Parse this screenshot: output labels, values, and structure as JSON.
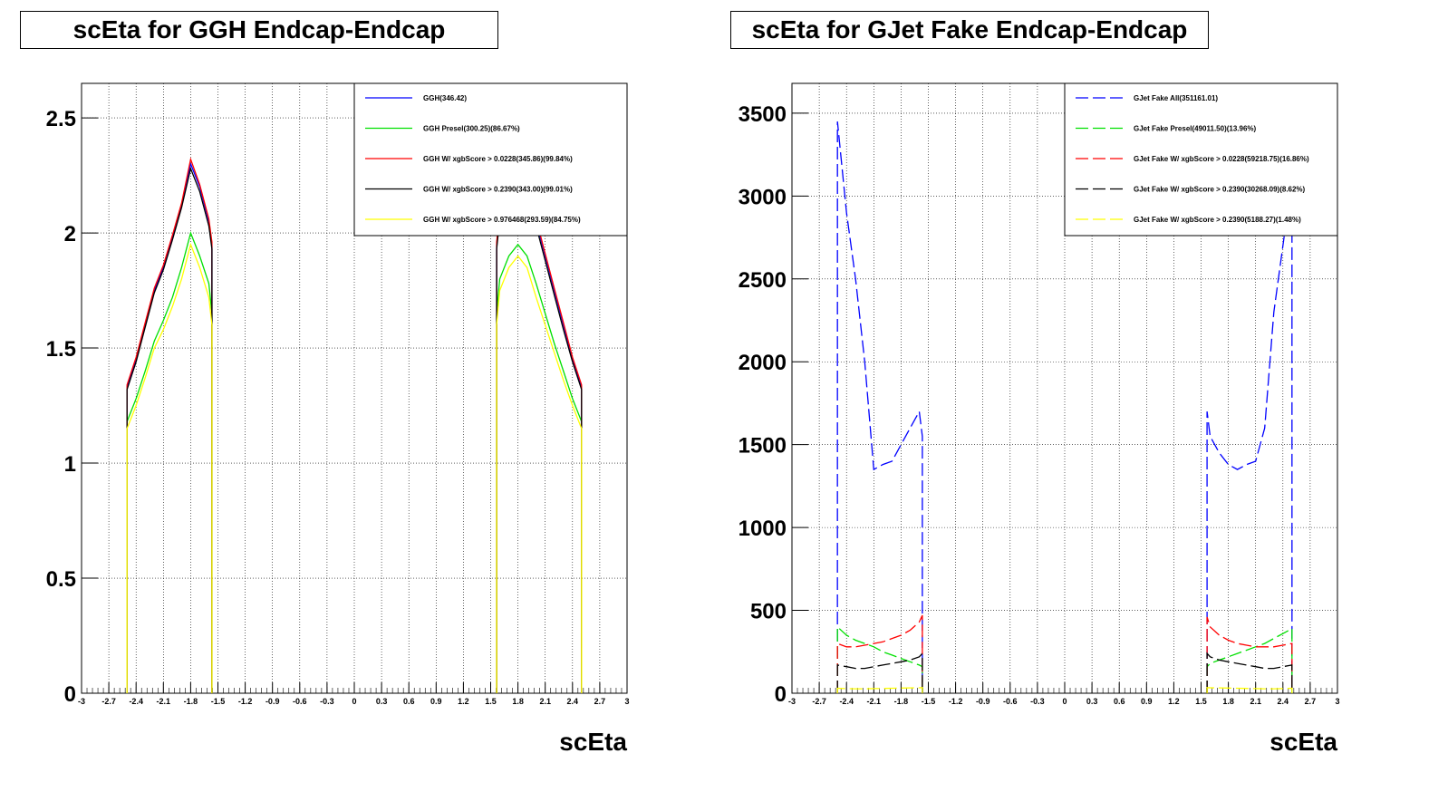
{
  "chart_data": [
    {
      "type": "line",
      "title": "scEta for GGH Endcap-Endcap",
      "xlabel": "scEta",
      "ylabel": "",
      "xlim": [
        -3,
        3
      ],
      "ylim": [
        0,
        2.65
      ],
      "yticks": [
        "0",
        "0.5",
        "1",
        "1.5",
        "2",
        "2.5"
      ],
      "xticks": [
        "-3",
        "-2.7",
        "-2.4",
        "-2.1",
        "-1.8",
        "-1.5",
        "-1.2",
        "-0.9",
        "-0.6",
        "-0.3",
        "0",
        "0.3",
        "0.6",
        "0.9",
        "1.2",
        "1.5",
        "1.8",
        "2.1",
        "2.4",
        "2.7",
        "3"
      ],
      "x": [
        -2.5,
        -2.4,
        -2.3,
        -2.2,
        -2.1,
        -2.0,
        -1.9,
        -1.8,
        -1.7,
        -1.6,
        -1.566,
        1.566,
        1.6,
        1.7,
        1.8,
        1.9,
        2.0,
        2.1,
        2.2,
        2.3,
        2.4,
        2.5
      ],
      "series": [
        {
          "name": "GGH(346.42)",
          "color": "#0000ff",
          "dashed": false,
          "values": [
            1.33,
            1.45,
            1.6,
            1.75,
            1.85,
            1.98,
            2.12,
            2.3,
            2.2,
            2.05,
            1.95,
            1.95,
            2.08,
            2.2,
            2.25,
            2.2,
            2.05,
            1.9,
            1.75,
            1.6,
            1.45,
            1.33
          ]
        },
        {
          "name": "GGH Presel(300.25)(86.67%)",
          "color": "#00e000",
          "dashed": false,
          "values": [
            1.18,
            1.28,
            1.4,
            1.53,
            1.62,
            1.72,
            1.85,
            2.0,
            1.9,
            1.78,
            1.65,
            1.65,
            1.8,
            1.9,
            1.95,
            1.9,
            1.78,
            1.65,
            1.52,
            1.4,
            1.28,
            1.18
          ]
        },
        {
          "name": "GGH W/ xgbScore > 0.0228(345.86)(99.84%)",
          "color": "#ff0000",
          "dashed": false,
          "values": [
            1.34,
            1.46,
            1.61,
            1.76,
            1.86,
            1.99,
            2.13,
            2.32,
            2.21,
            2.06,
            1.96,
            1.96,
            2.09,
            2.21,
            2.26,
            2.21,
            2.06,
            1.91,
            1.76,
            1.61,
            1.46,
            1.34
          ]
        },
        {
          "name": "GGH W/ xgbScore > 0.2390(343.00)(99.01%)",
          "color": "#000000",
          "dashed": false,
          "values": [
            1.32,
            1.44,
            1.59,
            1.74,
            1.84,
            1.97,
            2.11,
            2.28,
            2.18,
            2.03,
            1.93,
            1.93,
            2.06,
            2.18,
            2.23,
            2.18,
            2.03,
            1.88,
            1.73,
            1.58,
            1.44,
            1.32
          ]
        },
        {
          "name": "GGH W/ xgbScore > 0.976468(293.59)(84.75%)",
          "color": "#ffff00",
          "dashed": false,
          "values": [
            1.15,
            1.25,
            1.37,
            1.5,
            1.58,
            1.68,
            1.8,
            1.95,
            1.85,
            1.72,
            1.6,
            1.6,
            1.75,
            1.85,
            1.9,
            1.85,
            1.72,
            1.6,
            1.48,
            1.36,
            1.25,
            1.15
          ]
        }
      ]
    },
    {
      "type": "line",
      "title": "scEta for GJet Fake Endcap-Endcap",
      "xlabel": "scEta",
      "ylabel": "",
      "xlim": [
        -3,
        3
      ],
      "ylim": [
        0,
        3680
      ],
      "yticks": [
        "0",
        "500",
        "1000",
        "1500",
        "2000",
        "2500",
        "3000",
        "3500"
      ],
      "xticks": [
        "-3",
        "-2.7",
        "-2.4",
        "-2.1",
        "-1.8",
        "-1.5",
        "-1.2",
        "-0.9",
        "-0.6",
        "-0.3",
        "0",
        "0.3",
        "0.6",
        "0.9",
        "1.2",
        "1.5",
        "1.8",
        "2.1",
        "2.4",
        "2.7",
        "3"
      ],
      "x": [
        -2.5,
        -2.4,
        -2.3,
        -2.2,
        -2.1,
        -2.0,
        -1.9,
        -1.8,
        -1.7,
        -1.6,
        -1.566,
        1.566,
        1.6,
        1.7,
        1.8,
        1.9,
        2.0,
        2.1,
        2.2,
        2.3,
        2.4,
        2.5
      ],
      "series": [
        {
          "name": "GJet Fake All(351161.01)",
          "color": "#0000ff",
          "dashed": true,
          "values": [
            3450,
            2900,
            2500,
            2000,
            1350,
            1380,
            1400,
            1500,
            1600,
            1700,
            1550,
            1700,
            1550,
            1450,
            1380,
            1350,
            1380,
            1400,
            1600,
            2300,
            2700,
            3100
          ]
        },
        {
          "name": "GJet Fake Presel(49011.50)(13.96%)",
          "color": "#00e000",
          "dashed": true,
          "values": [
            400,
            350,
            320,
            300,
            280,
            250,
            230,
            210,
            190,
            170,
            160,
            160,
            180,
            200,
            220,
            240,
            260,
            280,
            300,
            330,
            360,
            390
          ]
        },
        {
          "name": "GJet Fake W/ xgbScore > 0.0228(59218.75)(16.86%)",
          "color": "#ff0000",
          "dashed": true,
          "values": [
            300,
            280,
            280,
            290,
            300,
            310,
            330,
            350,
            380,
            430,
            470,
            460,
            400,
            350,
            320,
            300,
            290,
            280,
            280,
            280,
            290,
            300
          ]
        },
        {
          "name": "GJet Fake W/ xgbScore > 0.2390(30268.09)(8.62%)",
          "color": "#000000",
          "dashed": true,
          "values": [
            170,
            160,
            150,
            150,
            160,
            170,
            180,
            190,
            200,
            220,
            240,
            240,
            220,
            200,
            190,
            180,
            170,
            160,
            150,
            150,
            160,
            170
          ]
        },
        {
          "name": "GJet Fake W/ xgbScore > 0.2390(5188.27)(1.48%)",
          "color": "#ffff00",
          "dashed": true,
          "values": [
            30,
            28,
            27,
            27,
            28,
            29,
            30,
            31,
            32,
            33,
            34,
            34,
            33,
            32,
            31,
            30,
            29,
            28,
            27,
            27,
            28,
            30
          ]
        }
      ]
    }
  ]
}
